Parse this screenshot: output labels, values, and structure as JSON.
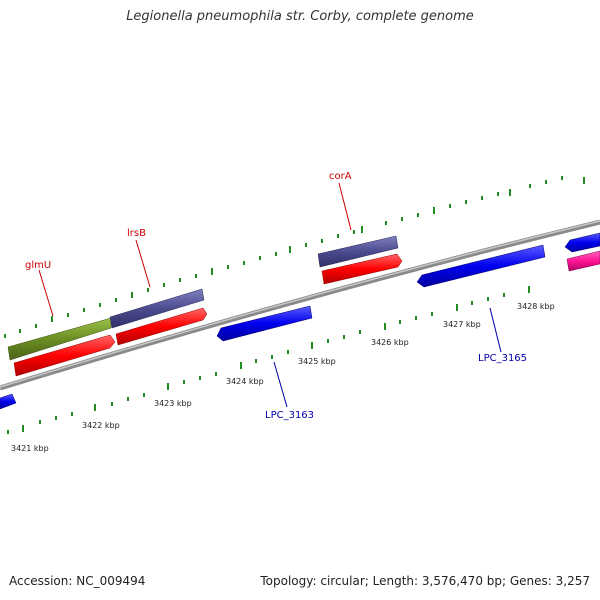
{
  "title": "Legionella pneumophila str. Corby, complete genome",
  "footer": {
    "accession": "Accession: NC_009494",
    "summary": "Topology: circular; Length: 3,576,470 bp; Genes: 3,257"
  },
  "scale_labels": [
    "3421 kbp",
    "3422 kbp",
    "3423 kbp",
    "3424 kbp",
    "3425 kbp",
    "3426 kbp",
    "3427 kbp",
    "3428 kbp"
  ],
  "gene_labels": {
    "glmU": "glmU",
    "lrsB": "lrsB",
    "corA": "corA",
    "lpc3163": "LPC_3163",
    "lpc3165": "LPC_3165"
  },
  "colors": {
    "backbone": "#8a8a8a",
    "forward_cds": "#ff0000",
    "reverse_cds": "#0000ee",
    "glmU_gene": "#6b8e23",
    "named_gene": "#4b4b8f",
    "pink_gene": "#ff1493",
    "tick": "#228b22",
    "label_red": "#cc0000",
    "label_blue": "#0000aa"
  }
}
